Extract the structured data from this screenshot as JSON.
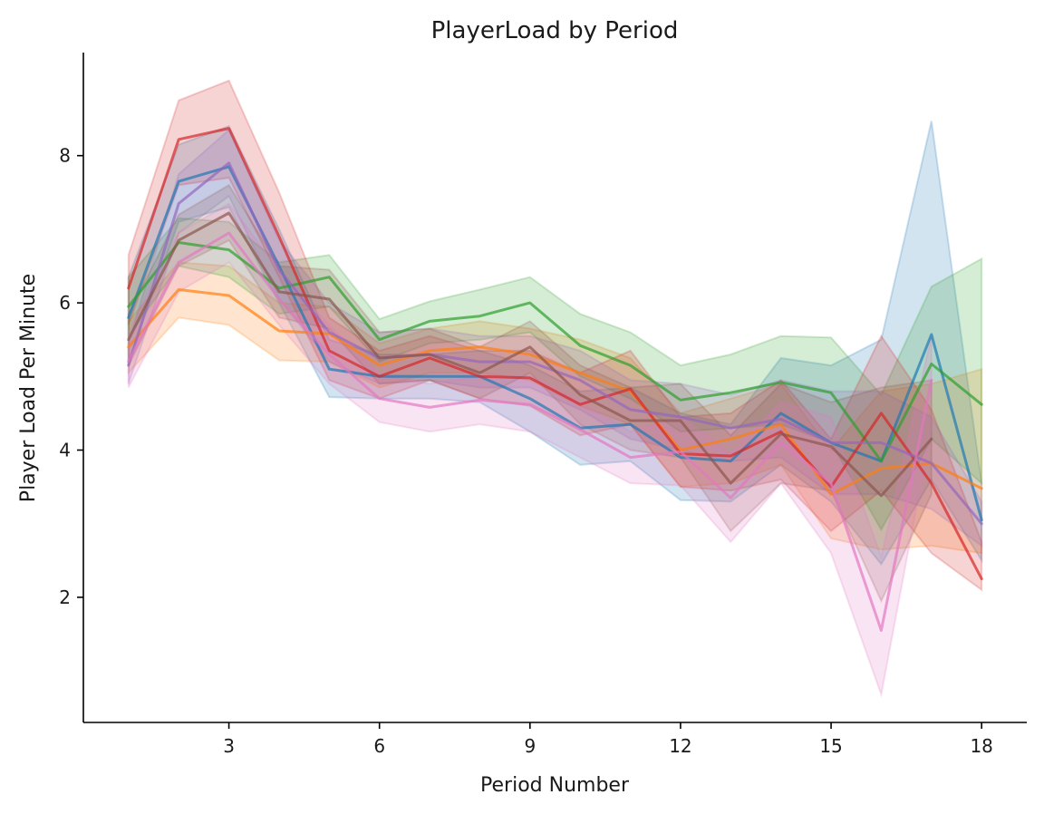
{
  "chart_data": {
    "type": "line",
    "title": "PlayerLoad by Period",
    "xlabel": "Period Number",
    "ylabel": "Player Load Per Minute",
    "xlim": [
      0.1,
      18.9
    ],
    "ylim": [
      0.3,
      9.4
    ],
    "xticks": [
      3,
      6,
      9,
      12,
      15,
      18
    ],
    "yticks": [
      2,
      4,
      6,
      8
    ],
    "grid": false,
    "legend": "none",
    "x": [
      1,
      2,
      3,
      4,
      5,
      6,
      7,
      8,
      9,
      10,
      11,
      12,
      13,
      14,
      15,
      16,
      17,
      18
    ],
    "series": [
      {
        "color": "#1f77b4",
        "values": [
          5.8,
          7.65,
          7.85,
          6.5,
          5.1,
          5.0,
          5.0,
          5.0,
          4.7,
          4.3,
          4.35,
          3.9,
          3.85,
          4.5,
          4.1,
          3.85,
          5.57,
          3.05
        ],
        "lower": [
          5.2,
          7.1,
          7.3,
          6.0,
          4.72,
          4.7,
          4.7,
          4.65,
          4.25,
          3.8,
          3.85,
          3.32,
          3.3,
          3.8,
          3.3,
          2.45,
          3.6,
          2.5
        ],
        "upper": [
          6.35,
          8.15,
          8.4,
          7.0,
          5.5,
          5.3,
          5.3,
          5.35,
          5.15,
          4.8,
          4.85,
          4.5,
          4.35,
          5.25,
          5.15,
          5.5,
          8.47,
          3.55
        ]
      },
      {
        "color": "#ff7f0e",
        "values": [
          5.4,
          6.18,
          6.1,
          5.62,
          5.58,
          5.15,
          5.35,
          5.4,
          5.3,
          5.05,
          4.8,
          4.0,
          4.15,
          4.35,
          3.4,
          3.75,
          3.82,
          3.48
        ],
        "lower": [
          5.05,
          5.8,
          5.7,
          5.22,
          5.2,
          4.85,
          5.05,
          5.05,
          4.95,
          4.6,
          4.35,
          3.5,
          3.55,
          3.8,
          2.8,
          2.65,
          2.7,
          2.6
        ],
        "upper": [
          5.75,
          6.55,
          6.5,
          6.0,
          5.95,
          5.45,
          5.65,
          5.75,
          5.65,
          5.5,
          5.25,
          4.5,
          4.7,
          4.9,
          4.0,
          4.8,
          4.9,
          5.1
        ]
      },
      {
        "color": "#2ca02c",
        "values": [
          5.95,
          6.82,
          6.72,
          6.2,
          6.35,
          5.5,
          5.75,
          5.82,
          6.0,
          5.42,
          5.15,
          4.68,
          4.78,
          4.92,
          4.78,
          3.85,
          5.17,
          4.62
        ],
        "lower": [
          5.55,
          6.5,
          6.35,
          5.85,
          5.95,
          5.2,
          5.45,
          5.5,
          5.6,
          5.0,
          4.7,
          4.25,
          4.3,
          4.35,
          4.1,
          2.92,
          4.15,
          3.55
        ],
        "upper": [
          6.35,
          7.15,
          7.1,
          6.55,
          6.65,
          5.78,
          6.02,
          6.18,
          6.35,
          5.85,
          5.6,
          5.15,
          5.3,
          5.55,
          5.53,
          4.75,
          6.22,
          6.6
        ]
      },
      {
        "color": "#d62728",
        "values": [
          6.2,
          8.22,
          8.37,
          6.9,
          5.35,
          5.0,
          5.25,
          5.0,
          4.98,
          4.62,
          4.83,
          3.95,
          3.92,
          4.25,
          3.5,
          4.5,
          3.55,
          2.25
        ],
        "lower": [
          5.7,
          7.6,
          7.7,
          6.35,
          4.95,
          4.7,
          4.95,
          4.7,
          4.6,
          4.2,
          4.35,
          3.5,
          3.45,
          3.6,
          2.9,
          3.45,
          2.6,
          2.1
        ],
        "upper": [
          6.65,
          8.75,
          9.02,
          7.5,
          5.8,
          5.35,
          5.55,
          5.35,
          5.35,
          5.05,
          5.35,
          4.45,
          4.5,
          4.95,
          4.15,
          5.55,
          4.55,
          2.75
        ]
      },
      {
        "color": "#9467bd",
        "values": [
          5.15,
          7.35,
          7.9,
          6.45,
          5.6,
          5.25,
          5.3,
          5.2,
          5.2,
          4.95,
          4.55,
          4.45,
          4.3,
          4.42,
          4.1,
          4.1,
          3.82,
          3.0
        ],
        "lower": [
          4.9,
          6.95,
          7.45,
          6.05,
          5.2,
          4.9,
          4.95,
          4.85,
          4.85,
          4.55,
          4.15,
          4.0,
          3.85,
          3.9,
          3.4,
          3.4,
          3.2,
          2.7
        ],
        "upper": [
          5.45,
          7.75,
          8.35,
          6.85,
          6.0,
          5.6,
          5.65,
          5.55,
          5.55,
          5.35,
          4.95,
          4.9,
          4.75,
          4.95,
          4.8,
          4.8,
          4.45,
          3.3
        ]
      },
      {
        "color": "#8c564b",
        "values": [
          5.5,
          6.85,
          7.22,
          6.15,
          6.05,
          5.25,
          5.3,
          5.05,
          5.4,
          4.75,
          4.4,
          4.4,
          3.55,
          4.22,
          4.05,
          3.38,
          4.15,
          null
        ],
        "lower": [
          5.15,
          6.5,
          6.85,
          5.8,
          5.65,
          4.9,
          4.95,
          4.7,
          5.05,
          4.35,
          4.0,
          3.9,
          2.9,
          3.55,
          3.45,
          1.95,
          3.4,
          null
        ],
        "upper": [
          5.85,
          7.2,
          7.6,
          6.5,
          6.45,
          5.6,
          5.65,
          5.4,
          5.75,
          5.15,
          4.85,
          4.9,
          4.2,
          4.9,
          4.65,
          4.85,
          4.95,
          null
        ]
      },
      {
        "color": "#e377c2",
        "values": [
          5.2,
          6.55,
          6.95,
          6.05,
          5.3,
          4.7,
          4.58,
          4.68,
          4.62,
          4.28,
          3.9,
          3.98,
          3.35,
          4.1,
          3.55,
          1.55,
          4.95,
          null
        ],
        "lower": [
          4.85,
          6.15,
          6.55,
          5.7,
          4.9,
          4.38,
          4.25,
          4.35,
          4.25,
          3.9,
          3.55,
          3.52,
          2.75,
          3.55,
          2.6,
          0.68,
          4.3,
          null
        ],
        "upper": [
          5.6,
          6.95,
          7.35,
          6.45,
          5.7,
          5.02,
          4.9,
          5.0,
          5.0,
          4.65,
          4.25,
          4.45,
          3.95,
          4.65,
          4.45,
          2.55,
          5.55,
          null
        ]
      }
    ]
  }
}
